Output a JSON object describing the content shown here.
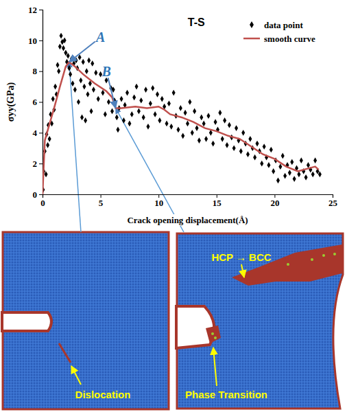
{
  "chart_data": {
    "type": "scatter",
    "title": "T-S",
    "xlabel": "Crack opening displacement(Å)",
    "ylabel": "σyy(GPa)",
    "xlim": [
      0,
      25
    ],
    "ylim": [
      0,
      12
    ],
    "xticks": [
      0,
      5,
      10,
      15,
      20,
      25
    ],
    "yticks": [
      0,
      2,
      4,
      6,
      8,
      10,
      12
    ],
    "grid": false,
    "legend": "upper right",
    "series": [
      {
        "name": "data point",
        "type": "scatter",
        "marker": "diamond",
        "color": "#000000",
        "x": [
          0.05,
          0.1,
          0.2,
          0.3,
          0.35,
          0.45,
          0.5,
          0.6,
          0.7,
          0.8,
          0.9,
          1.0,
          1.1,
          1.2,
          1.3,
          1.4,
          1.5,
          1.6,
          1.7,
          1.8,
          1.9,
          2.0,
          2.1,
          2.2,
          2.3,
          2.4,
          2.5,
          2.6,
          2.7,
          2.8,
          2.9,
          3.0,
          3.1,
          3.2,
          3.3,
          3.4,
          3.5,
          3.6,
          3.7,
          3.8,
          3.9,
          4.0,
          4.1,
          4.2,
          4.3,
          4.4,
          4.6,
          4.8,
          5.0,
          5.2,
          5.4,
          5.5,
          5.7,
          5.9,
          6.0,
          6.1,
          6.2,
          6.4,
          6.5,
          6.6,
          6.8,
          7.0,
          7.1,
          7.3,
          7.5,
          7.7,
          7.9,
          8.1,
          8.3,
          8.5,
          8.7,
          8.9,
          9.1,
          9.3,
          9.5,
          9.7,
          9.9,
          10.1,
          10.3,
          10.5,
          10.7,
          10.9,
          11.1,
          11.3,
          11.5,
          11.7,
          11.9,
          12.1,
          12.3,
          12.5,
          12.7,
          12.9,
          13.1,
          13.3,
          13.5,
          13.7,
          13.9,
          14.1,
          14.3,
          14.5,
          14.7,
          14.9,
          15.1,
          15.3,
          15.5,
          15.7,
          15.9,
          16.1,
          16.3,
          16.5,
          16.7,
          16.9,
          17.1,
          17.3,
          17.5,
          17.7,
          17.9,
          18.1,
          18.3,
          18.5,
          18.7,
          18.9,
          19.1,
          19.3,
          19.5,
          19.7,
          19.9,
          20.1,
          20.3,
          20.5,
          20.7,
          20.9,
          21.1,
          21.3,
          21.5,
          21.7,
          21.9,
          22.1,
          22.3,
          22.5,
          22.7,
          22.9,
          23.1,
          23.3,
          23.5,
          23.7,
          23.9
        ],
        "values": [
          0.3,
          1.5,
          2.8,
          1.3,
          3.9,
          3.2,
          4.5,
          3.6,
          5.2,
          4.6,
          6.2,
          5.5,
          7.0,
          6.5,
          8.4,
          8.0,
          9.6,
          10.3,
          9.9,
          9.5,
          10.0,
          9.2,
          8.6,
          9.0,
          8.2,
          7.8,
          8.8,
          7.2,
          8.5,
          6.8,
          8.7,
          8.2,
          6.0,
          8.9,
          7.4,
          5.0,
          8.6,
          7.0,
          4.8,
          8.0,
          6.5,
          8.7,
          7.2,
          5.4,
          8.5,
          6.8,
          7.9,
          6.2,
          7.8,
          6.6,
          5.2,
          7.4,
          6.0,
          6.9,
          5.4,
          6.8,
          6.1,
          5.0,
          4.2,
          5.6,
          6.2,
          4.8,
          5.8,
          6.6,
          4.6,
          5.2,
          6.3,
          7.0,
          5.4,
          6.1,
          5.0,
          6.8,
          4.4,
          5.9,
          6.9,
          5.2,
          6.5,
          4.8,
          6.2,
          5.7,
          4.6,
          5.9,
          4.4,
          6.6,
          5.1,
          4.2,
          5.6,
          3.8,
          5.3,
          4.6,
          6.0,
          4.0,
          5.4,
          4.3,
          3.5,
          5.0,
          4.6,
          3.6,
          5.1,
          4.0,
          3.3,
          4.7,
          4.2,
          5.3,
          3.6,
          4.8,
          3.2,
          4.5,
          3.7,
          3.0,
          4.3,
          3.5,
          2.8,
          4.0,
          3.3,
          2.6,
          3.6,
          3.0,
          2.4,
          3.3,
          2.8,
          2.0,
          3.1,
          2.4,
          1.9,
          2.9,
          1.5,
          2.2,
          0.9,
          1.8,
          2.5,
          1.2,
          1.9,
          1.4,
          2.1,
          1.0,
          1.7,
          1.3,
          2.2,
          1.5,
          1.1,
          1.9,
          1.6,
          1.3,
          2.2,
          1.5,
          1.3
        ]
      },
      {
        "name": "smooth curve",
        "type": "line",
        "line_style": "solid",
        "color": "#c0504d",
        "x": [
          0,
          0.2,
          0.5,
          1,
          1.5,
          2,
          2.3,
          2.8,
          3.5,
          4.5,
          5.5,
          6,
          6.3,
          6.8,
          8,
          9,
          10,
          10.5,
          11,
          12,
          13,
          14,
          15,
          16,
          17,
          18,
          19,
          20,
          21,
          22,
          23,
          23.5,
          23.8
        ],
        "values": [
          0,
          3.5,
          4.3,
          5.6,
          7,
          8.3,
          8.6,
          8.3,
          7.8,
          7.2,
          6.7,
          6.3,
          5.6,
          5.6,
          5.7,
          5.6,
          5.7,
          5.5,
          5.2,
          5,
          4.7,
          4.3,
          4.1,
          3.8,
          3.6,
          3.1,
          2.6,
          2.3,
          1.8,
          1.5,
          1.7,
          1.8,
          1.6
        ]
      }
    ],
    "annotations": [
      {
        "text": "A",
        "x": 5.0,
        "y": 10.2,
        "target_x": 2.3,
        "target_y": 8.6,
        "snapshot": [
          "Dislocation"
        ]
      },
      {
        "text": "B",
        "x": 5.5,
        "y": 8.0,
        "target_x": 6.3,
        "target_y": 5.6,
        "snapshot": [
          "HCP → BCC",
          "Phase Transition"
        ]
      }
    ]
  }
}
